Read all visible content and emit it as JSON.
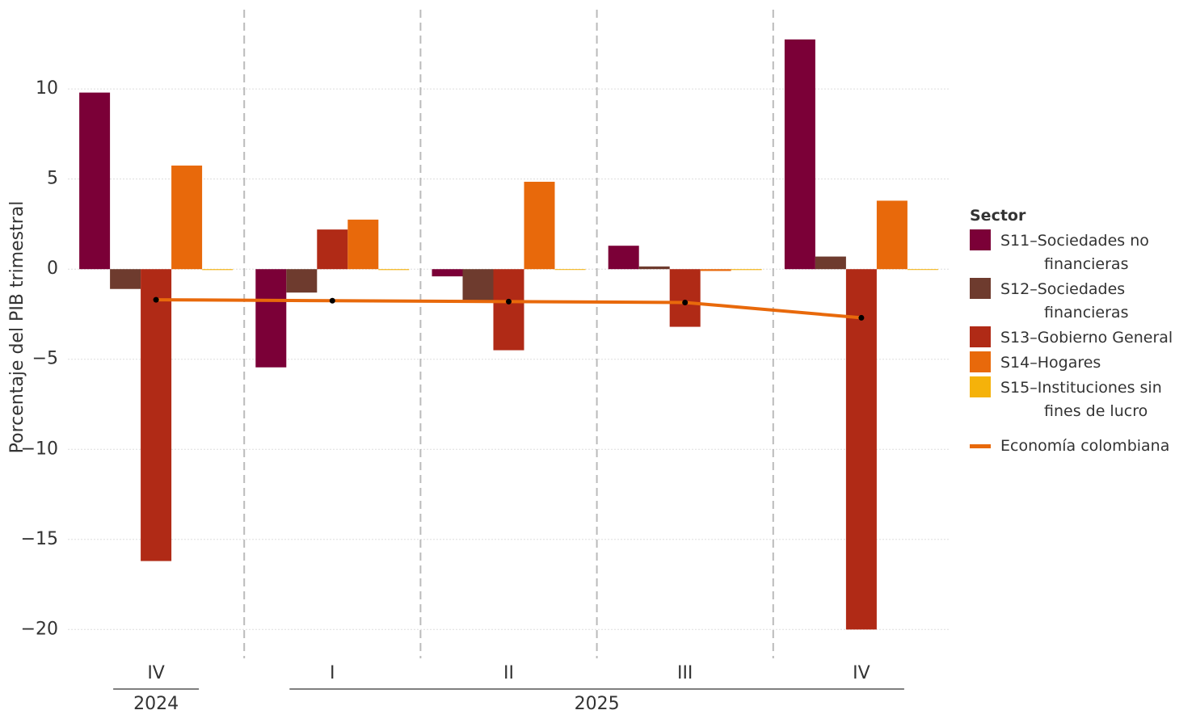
{
  "chart_data": {
    "type": "bar",
    "y_label": "Porcentaje del PIB trimestral",
    "categories": [
      "IV",
      "I",
      "II",
      "III",
      "IV"
    ],
    "category_groups": [
      {
        "label": "2024",
        "count": 1
      },
      {
        "label": "2025",
        "count": 4
      }
    ],
    "series": [
      {
        "name": "S11–Sociedades no financieras",
        "color": "#7b0037",
        "values": [
          9.8,
          -5.45,
          -0.4,
          1.3,
          12.75
        ]
      },
      {
        "name": "S12–Sociedades financieras",
        "color": "#6e3b2e",
        "values": [
          -1.1,
          -1.3,
          -1.75,
          0.15,
          0.7
        ]
      },
      {
        "name": "S13–Gobierno General",
        "color": "#b02a16",
        "values": [
          -16.2,
          2.2,
          -4.5,
          -3.2,
          -20
        ]
      },
      {
        "name": "S14–Hogares",
        "color": "#e8690b",
        "values": [
          5.75,
          2.75,
          4.85,
          -0.1,
          3.8
        ]
      },
      {
        "name": "S15–Instituciones sin fines de lucro",
        "color": "#f5b20a",
        "values": [
          -0.05,
          -0.05,
          -0.02,
          -0.05,
          -0.02
        ]
      }
    ],
    "line": {
      "name": "Economía colombiana",
      "color": "#e8690b",
      "values": [
        -1.7,
        -1.75,
        -1.8,
        -1.85,
        -2.7
      ]
    },
    "legend_title": "Sector",
    "ylim": [
      -21.6,
      14.4
    ],
    "yticks": [
      {
        "value": -20,
        "label": "−20"
      },
      {
        "value": -15,
        "label": "−15"
      },
      {
        "value": -10,
        "label": "−10"
      },
      {
        "value": -5,
        "label": "−5"
      },
      0,
      5,
      10
    ],
    "grid": true
  }
}
